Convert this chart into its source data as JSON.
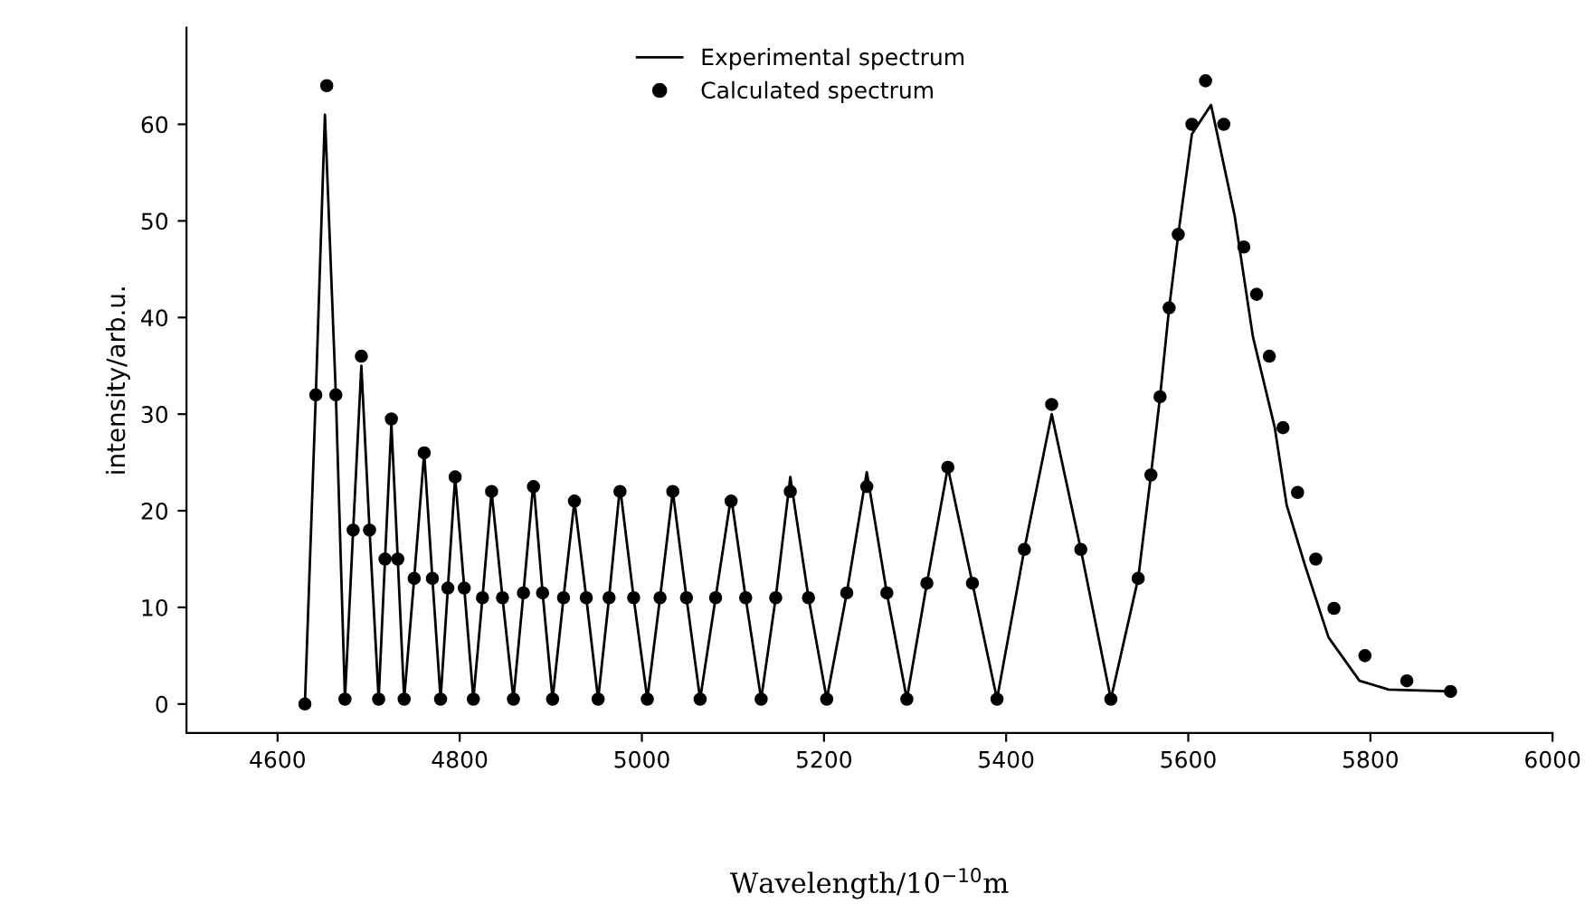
{
  "chart_data": {
    "type": "line",
    "xlabel": "Wavelength/10$^{−10}$m",
    "ylabel": "intensity/arb.u.",
    "xlim": [
      4500,
      6000
    ],
    "xticks": [
      4600,
      4800,
      5000,
      5200,
      5400,
      5600,
      5800,
      6000
    ],
    "ylim": [
      -3,
      70
    ],
    "yticks": [
      0,
      10,
      20,
      30,
      40,
      50,
      60
    ],
    "grid": false,
    "legend": "top",
    "series": [
      {
        "name": "Experimental spectrum",
        "color": "#000000",
        "line_style": "solid",
        "marker": "none",
        "x": [
          4630,
          4642,
          4652,
          4664,
          4674,
          4683,
          4692,
          4701,
          4711,
          4718,
          4725,
          4732,
          4739,
          4750,
          4761,
          4770,
          4779,
          4787,
          4795,
          4805,
          4815,
          4825,
          4835,
          4847,
          4859,
          4870,
          4881,
          4891,
          4902,
          4914,
          4926,
          4939,
          4952,
          4964,
          4976,
          4991,
          5006,
          5020,
          5034,
          5049,
          5064,
          5081,
          5098,
          5114,
          5131,
          5147,
          5163,
          5183,
          5203,
          5225,
          5247,
          5269,
          5291,
          5313,
          5336,
          5363,
          5390,
          5420,
          5450,
          5482,
          5515,
          5545,
          5559,
          5569,
          5579,
          5589,
          5604,
          5625,
          5651,
          5671,
          5695,
          5708,
          5728,
          5754,
          5788,
          5820,
          5888
        ],
        "values": [
          0,
          32,
          61,
          32,
          0.5,
          18,
          35,
          18,
          0.5,
          15,
          29,
          15,
          0.5,
          13,
          26,
          13,
          0.5,
          12,
          23.5,
          12,
          0.5,
          11,
          22,
          11,
          0.5,
          11.5,
          23,
          11.5,
          0.5,
          11,
          21,
          11,
          0.5,
          11,
          22.5,
          11,
          0.5,
          11,
          22,
          11,
          0.5,
          11,
          21.5,
          11,
          0.5,
          11,
          23.5,
          11,
          0.5,
          11.5,
          24,
          11.5,
          0.5,
          12.5,
          24.5,
          12.5,
          0.5,
          16,
          30,
          16,
          0.5,
          13,
          23.7,
          31.8,
          41,
          48.6,
          59,
          62,
          50.5,
          38,
          28.6,
          20.6,
          14.4,
          6.9,
          2.4,
          1.5,
          1.3
        ]
      },
      {
        "name": "Calculated spectrum",
        "type": "scatter",
        "color": "#000000",
        "marker": "circle",
        "x": [
          4630,
          4642,
          4654,
          4664,
          4674,
          4683,
          4692,
          4701,
          4711,
          4718,
          4725,
          4732,
          4739,
          4750,
          4761,
          4770,
          4779,
          4787,
          4795,
          4805,
          4815,
          4825,
          4835,
          4847,
          4859,
          4870,
          4881,
          4891,
          4902,
          4914,
          4926,
          4939,
          4952,
          4964,
          4976,
          4991,
          5006,
          5020,
          5034,
          5049,
          5064,
          5081,
          5098,
          5114,
          5131,
          5147,
          5163,
          5183,
          5203,
          5225,
          5247,
          5269,
          5291,
          5313,
          5336,
          5363,
          5390,
          5420,
          5450,
          5482,
          5515,
          5545,
          5559,
          5569,
          5579,
          5589,
          5604,
          5619,
          5639,
          5661,
          5675,
          5689,
          5704,
          5720,
          5740,
          5760,
          5794,
          5840,
          5888
        ],
        "values": [
          0,
          32,
          64,
          32,
          0.5,
          18,
          36,
          18,
          0.5,
          15,
          29.5,
          15,
          0.5,
          13,
          26,
          13,
          0.5,
          12,
          23.5,
          12,
          0.5,
          11,
          22,
          11,
          0.5,
          11.5,
          22.5,
          11.5,
          0.5,
          11,
          21,
          11,
          0.5,
          11,
          22,
          11,
          0.5,
          11,
          22,
          11,
          0.5,
          11,
          21,
          11,
          0.5,
          11,
          22,
          11,
          0.5,
          11.5,
          22.5,
          11.5,
          0.5,
          12.5,
          24.5,
          12.5,
          0.5,
          16,
          31,
          16,
          0.5,
          13,
          23.7,
          31.8,
          41,
          48.6,
          60,
          64.5,
          60,
          47.3,
          42.4,
          36,
          28.6,
          21.9,
          15,
          9.9,
          5,
          2.4,
          1.3
        ]
      }
    ]
  }
}
